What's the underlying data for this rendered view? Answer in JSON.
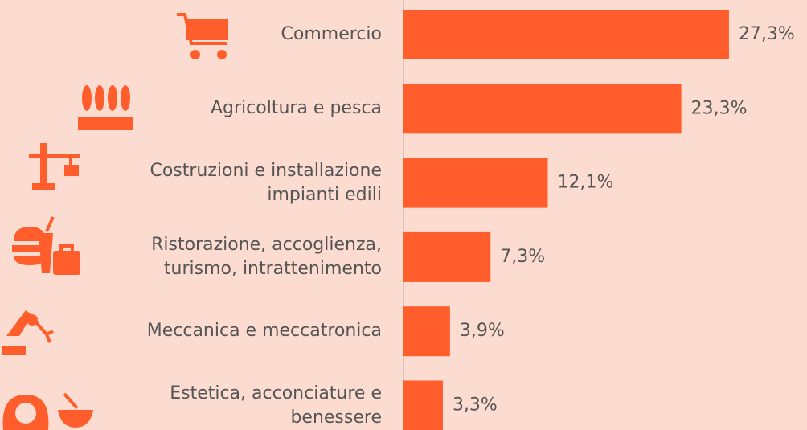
{
  "chart_data": {
    "type": "bar",
    "orientation": "horizontal",
    "categories": [
      "Commercio",
      "Agricoltura e pesca",
      "Costruzioni e installazione\nimpianti edili",
      "Ristorazione, accoglienza,\nturismo, intrattenimento",
      "Meccanica e meccatronica",
      "Estetica, acconciature e\nbenessere"
    ],
    "values": [
      27.3,
      23.3,
      12.1,
      7.3,
      3.9,
      3.3
    ],
    "value_labels": [
      "27,3%",
      "23,3%",
      "12,1%",
      "7,3%",
      "3,9%",
      "3,3%"
    ],
    "color": "#ff5e2c",
    "xlim": [
      0,
      30
    ]
  }
}
